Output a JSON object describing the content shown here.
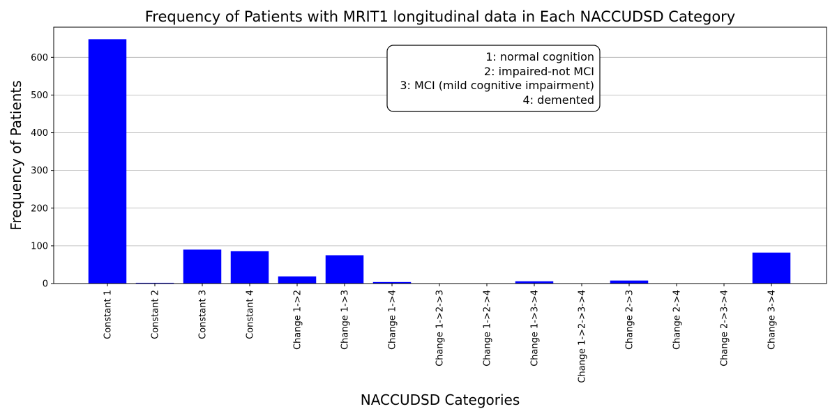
{
  "chart_data": {
    "type": "bar",
    "title": "Frequency of Patients with MRIT1 longitudinal data in Each NACCUDSD Category",
    "xlabel": "NACCUDSD Categories",
    "ylabel": "Frequency of Patients",
    "ylim": [
      0,
      680
    ],
    "yticks": [
      0,
      100,
      200,
      300,
      400,
      500,
      600
    ],
    "grid": "y",
    "bar_color": "#0000ff",
    "categories": [
      "Constant 1",
      "Constant 2",
      "Constant 3",
      "Constant 4",
      "Change 1->2",
      "Change 1->3",
      "Change 1->4",
      "Change 1->2->3",
      "Change 1->2->4",
      "Change 1->3->4",
      "Change 1->2->3->4",
      "Change 2->3",
      "Change 2->4",
      "Change 2->3->4",
      "Change 3->4"
    ],
    "values": [
      648,
      2,
      90,
      86,
      19,
      75,
      4,
      0,
      0,
      6,
      0,
      8,
      0,
      0,
      82
    ],
    "annotation": {
      "lines": [
        "1: normal cognition",
        "2: impaired-not MCI",
        "3: MCI (mild cognitive impairment)",
        "4: demented"
      ],
      "placement": "top-center-right"
    }
  }
}
